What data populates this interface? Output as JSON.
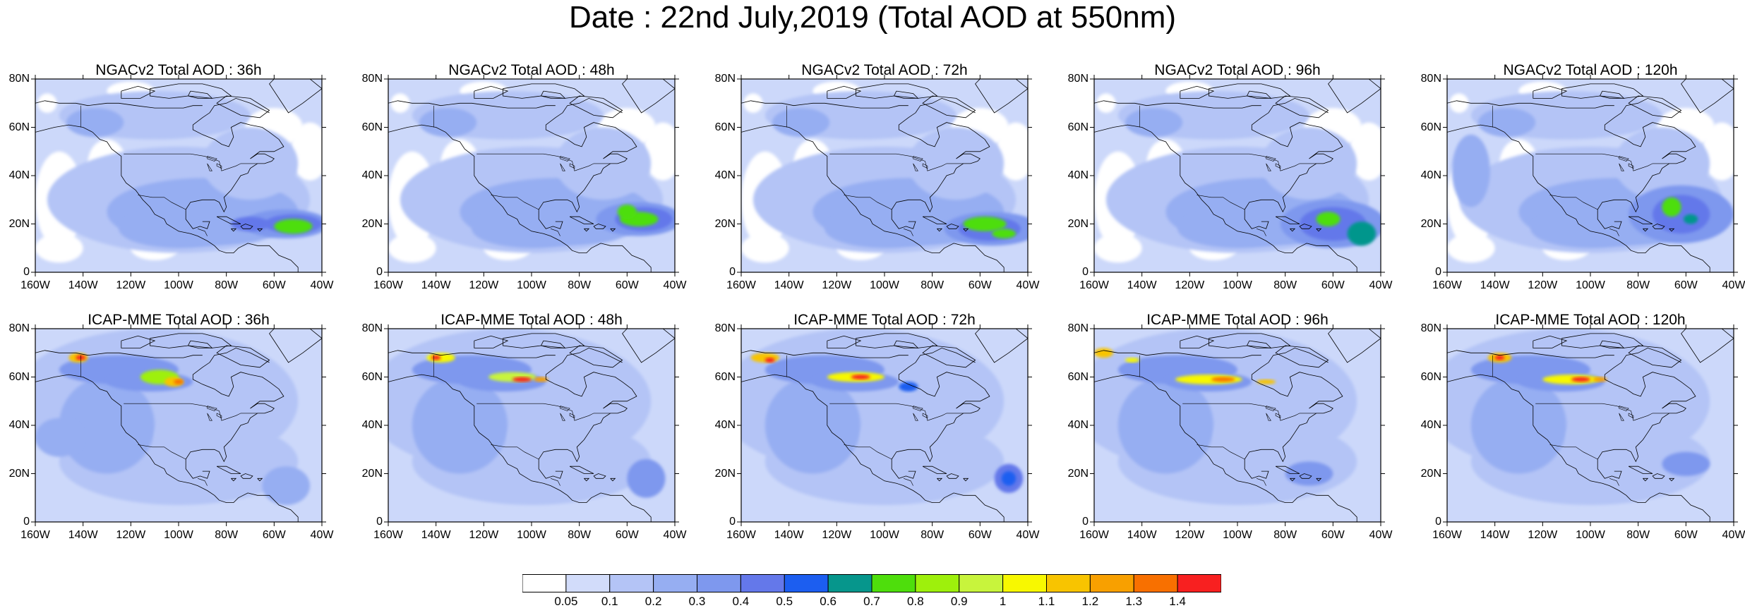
{
  "title": "Date : 22nd July,2019 (Total AOD at 550nm)",
  "axes": {
    "y_ticks": [
      "80N",
      "60N",
      "40N",
      "20N",
      "0"
    ],
    "x_ticks": [
      "160W",
      "140W",
      "120W",
      "100W",
      "80W",
      "60W",
      "40W"
    ]
  },
  "colors": {
    "background_low": "#ccd8fa",
    "land_outline": "#000000",
    "levels": [
      "#ffffff",
      "#d2dcfa",
      "#b4c4f6",
      "#96aef2",
      "#7e98ee",
      "#6478ea",
      "#1c5ef0",
      "#06968c",
      "#4ede0c",
      "#9ef00c",
      "#c8f43c",
      "#f8f800",
      "#f8c400",
      "#f8a000",
      "#f87000",
      "#f82020"
    ]
  },
  "colorbar": {
    "labels": [
      "0.05",
      "0.1",
      "0.2",
      "0.3",
      "0.4",
      "0.5",
      "0.6",
      "0.7",
      "0.8",
      "0.9",
      "1",
      "1.1",
      "1.2",
      "1.3",
      "1.4"
    ]
  },
  "panels": [
    {
      "title": "NGACv2 Total AOD : 36h",
      "model": "ngac",
      "h": 36
    },
    {
      "title": "NGACv2 Total AOD : 48h",
      "model": "ngac",
      "h": 48
    },
    {
      "title": "NGACv2 Total AOD : 72h",
      "model": "ngac",
      "h": 72
    },
    {
      "title": "NGACv2 Total AOD : 96h",
      "model": "ngac",
      "h": 96
    },
    {
      "title": "NGACv2 Total AOD : 120h",
      "model": "ngac",
      "h": 120
    },
    {
      "title": "ICAP-MME Total AOD : 36h",
      "model": "icap",
      "h": 36
    },
    {
      "title": "ICAP-MME Total AOD : 48h",
      "model": "icap",
      "h": 48
    },
    {
      "title": "ICAP-MME Total AOD : 72h",
      "model": "icap",
      "h": 72
    },
    {
      "title": "ICAP-MME Total AOD : 96h",
      "model": "icap",
      "h": 96
    },
    {
      "title": "ICAP-MME Total AOD : 120h",
      "model": "icap",
      "h": 120
    }
  ]
}
